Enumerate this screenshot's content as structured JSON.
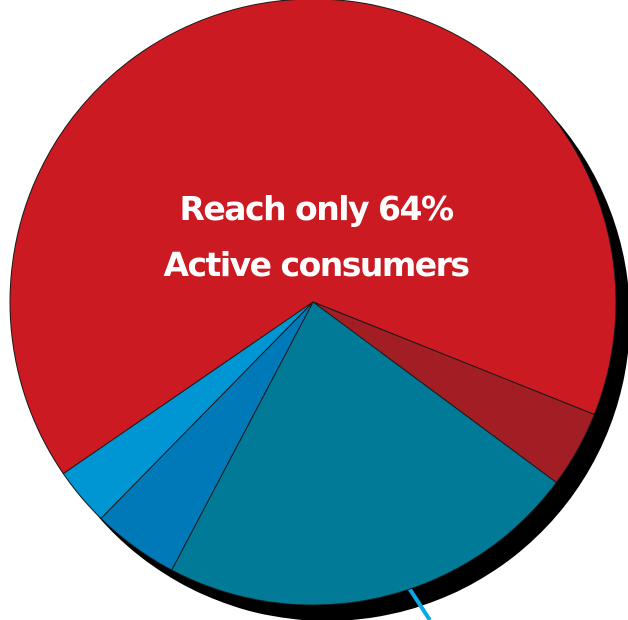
{
  "chart_data": {
    "type": "pie",
    "annotation_lines": [
      "Reach only 64%",
      "Active consumers"
    ],
    "slices": [
      {
        "value": 64,
        "color": "#cc1a22"
      },
      {
        "value": 4,
        "color": "#a31e24"
      },
      {
        "value": 22,
        "color": "#007a96"
      },
      {
        "value": 4.5,
        "color": "#0079b8"
      },
      {
        "value": 3,
        "color": "#0095d3"
      }
    ],
    "colors": {
      "shadow": "#000000",
      "outline": "#1a1a1a",
      "leader_line": "#0ea7e6"
    }
  }
}
